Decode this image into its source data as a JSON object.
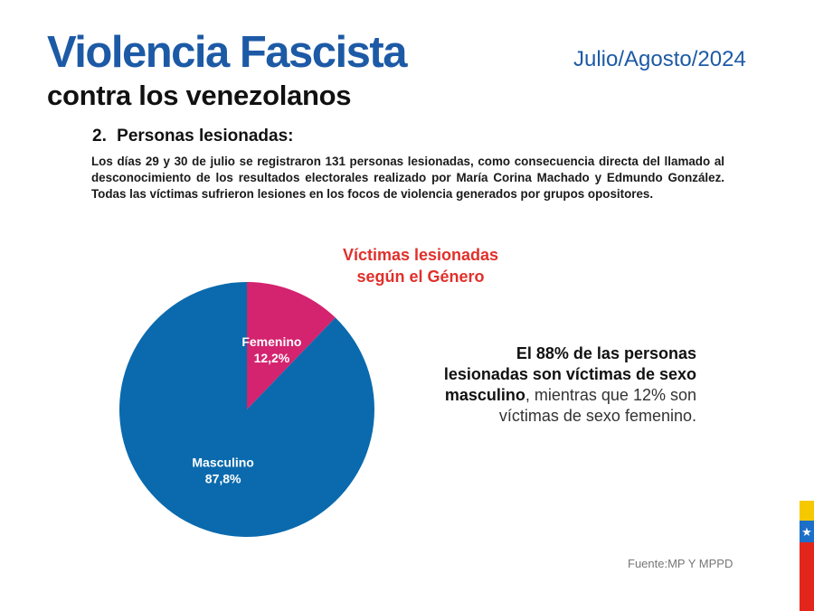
{
  "header": {
    "title": "Violencia Fascista",
    "subtitle": "contra los venezolanos",
    "date": "Julio/Agosto/2024"
  },
  "section": {
    "number": "2.",
    "title": "Personas lesionadas:",
    "body": "Los días 29 y 30 de julio se registraron 131 personas lesionadas, como consecuencia directa del llamado al desconocimiento de los resultados electorales realizado por María Corina Machado y Edmundo González. Todas las víctimas sufrieron lesiones en los focos de violencia generados por grupos opositores."
  },
  "callout": {
    "bold_text": "El 88% de las personas lesionadas son víctimas de sexo masculino",
    "normal_text": ", mientras que 12% son víctimas de sexo femenino."
  },
  "source": "Fuente:MP Y MPPD",
  "colors": {
    "title_blue": "#1d5aa6",
    "chart_title_red": "#e0302b",
    "masculino": "#0a6aad",
    "femenino": "#d4236f",
    "flag_yellow": "#f6c800",
    "flag_blue": "#1b6fc8",
    "flag_red": "#e3261c"
  },
  "chart_data": {
    "type": "pie",
    "title": "Víctimas lesionadas",
    "subtitle": "según el Género",
    "categories": [
      "Masculino",
      "Femenino"
    ],
    "values": [
      87.8,
      12.2
    ],
    "labels": [
      "87,8%",
      "12,2%"
    ],
    "colors": [
      "#0a6aad",
      "#d4236f"
    ],
    "start": "top",
    "direction": "clockwise, Femenino first"
  }
}
